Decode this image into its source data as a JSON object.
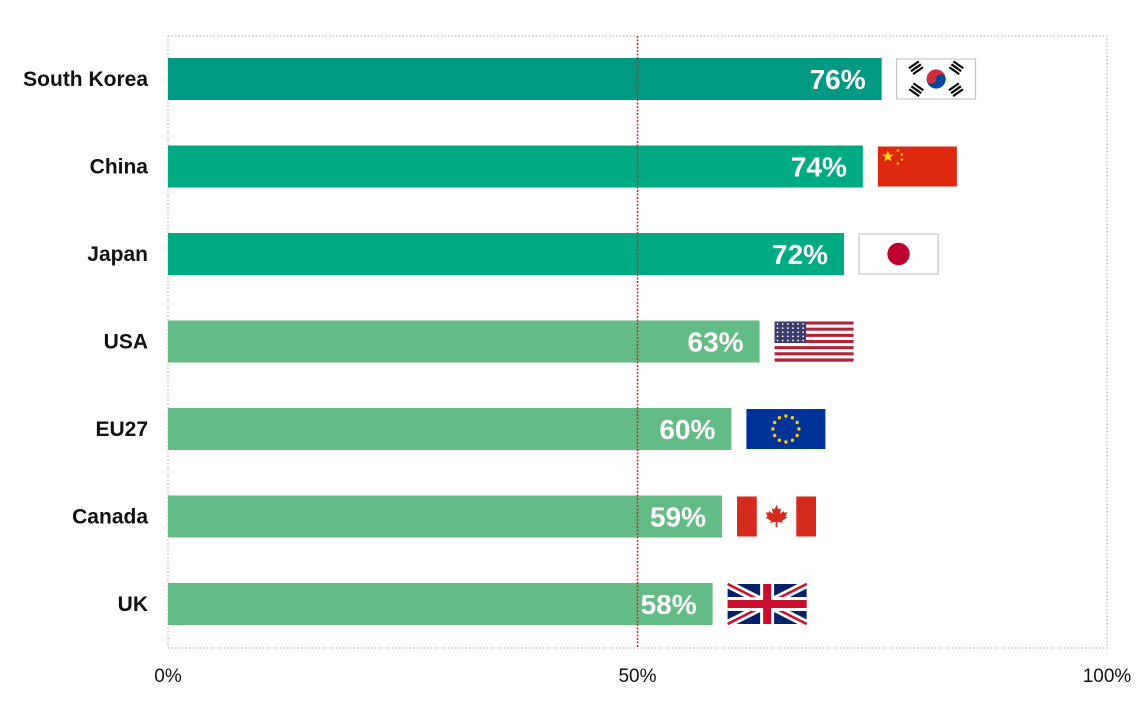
{
  "chart_data": {
    "type": "bar",
    "orientation": "horizontal",
    "categories": [
      "South Korea",
      "China",
      "Japan",
      "USA",
      "EU27",
      "Canada",
      "UK"
    ],
    "values": [
      76,
      74,
      72,
      63,
      60,
      59,
      58
    ],
    "value_labels": [
      "76%",
      "74%",
      "72%",
      "63%",
      "60%",
      "59%",
      "58%"
    ],
    "xlim": [
      0,
      100
    ],
    "x_ticks": [
      0,
      50,
      100
    ],
    "x_tick_labels": [
      "0%",
      "50%",
      "100%"
    ],
    "reference_line": 50,
    "grid": false,
    "colors": {
      "bars": [
        "#009a84",
        "#00ab84",
        "#00ab84",
        "#63bc85",
        "#63bc85",
        "#63bc85",
        "#63bc85"
      ],
      "reference_line": "#d81e2c",
      "frame": "#aaaaaa"
    },
    "flags": [
      "south-korea-flag",
      "china-flag",
      "japan-flag",
      "usa-flag",
      "eu-flag",
      "canada-flag",
      "uk-flag"
    ]
  }
}
